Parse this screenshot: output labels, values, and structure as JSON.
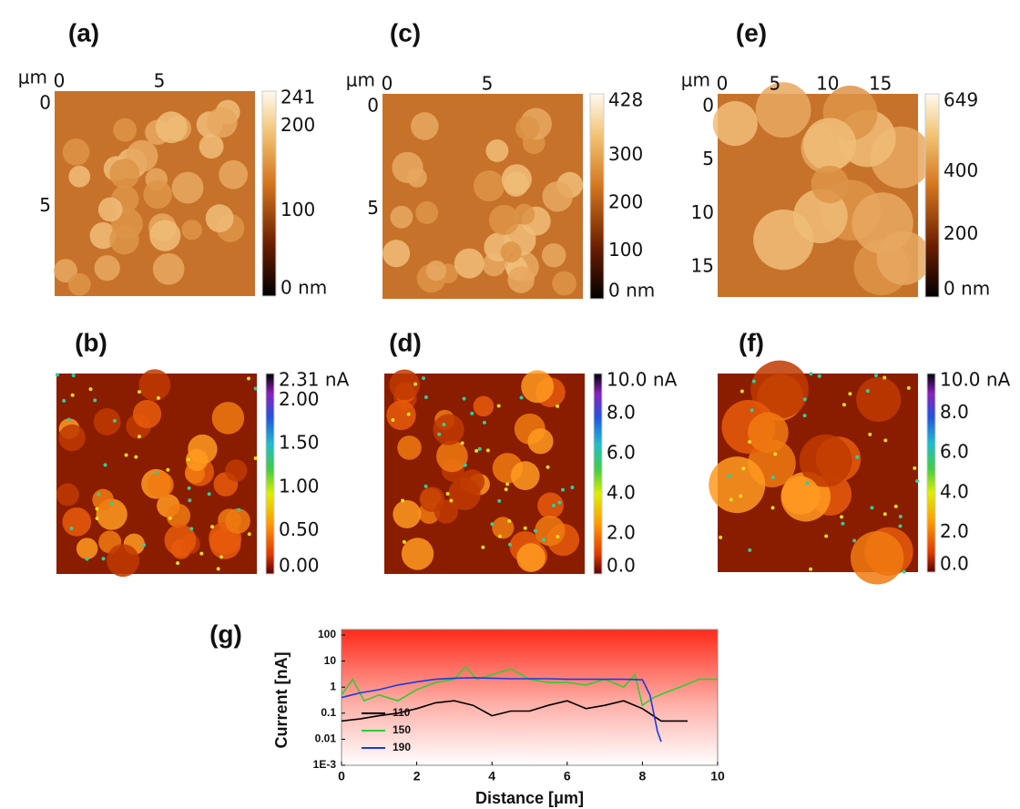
{
  "panels": [
    {
      "label": "(a)",
      "axis_unit": "μm",
      "xlim": [
        0,
        10
      ],
      "ylim": [
        0,
        10
      ],
      "xticks": [
        0,
        5
      ],
      "yticks": [
        0,
        5
      ],
      "kind": "height",
      "colorbar": {
        "lim": [
          0,
          241
        ],
        "ticks": [
          241,
          200,
          100,
          {
            "value": 0,
            "label": "0 nm"
          }
        ]
      }
    },
    {
      "label": "(b)",
      "kind": "current",
      "colorbar": {
        "lim": [
          0,
          2.31
        ],
        "ticks": [
          {
            "value": 2.31,
            "label": "2.31 nA"
          },
          {
            "value": 2,
            "label": "2.00"
          },
          {
            "value": 1.5,
            "label": "1.50"
          },
          {
            "value": 1,
            "label": "1.00"
          },
          {
            "value": 0.5,
            "label": "0.50"
          },
          {
            "value": 0,
            "label": "0.00"
          }
        ]
      }
    },
    {
      "label": "(c)",
      "axis_unit": "μm",
      "xlim": [
        0,
        10
      ],
      "ylim": [
        0,
        10
      ],
      "xticks": [
        0,
        5
      ],
      "yticks": [
        0,
        5
      ],
      "kind": "height",
      "colorbar": {
        "lim": [
          0,
          428
        ],
        "ticks": [
          428,
          300,
          200,
          100,
          {
            "value": 0,
            "label": "0 nm"
          }
        ]
      }
    },
    {
      "label": "(d)",
      "kind": "current",
      "colorbar": {
        "lim": [
          0,
          10
        ],
        "ticks": [
          {
            "value": 10,
            "label": "10.0 nA"
          },
          {
            "value": 8,
            "label": "8.0"
          },
          {
            "value": 6,
            "label": "6.0"
          },
          {
            "value": 4,
            "label": "4.0"
          },
          {
            "value": 2,
            "label": "2.0"
          },
          {
            "value": 0,
            "label": "0.0"
          }
        ]
      }
    },
    {
      "label": "(e)",
      "axis_unit": "μm",
      "xlim": [
        0,
        19
      ],
      "ylim": [
        0,
        19
      ],
      "xticks": [
        0,
        5,
        10,
        15
      ],
      "yticks": [
        0,
        5,
        10,
        15
      ],
      "kind": "height",
      "colorbar": {
        "lim": [
          0,
          649
        ],
        "ticks": [
          649,
          400,
          200,
          {
            "value": 0,
            "label": "0 nm"
          }
        ]
      }
    },
    {
      "label": "(f)",
      "kind": "current",
      "colorbar": {
        "lim": [
          0,
          10
        ],
        "ticks": [
          {
            "value": 10,
            "label": "10.0 nA"
          },
          {
            "value": 8,
            "label": "8.0"
          },
          {
            "value": 6,
            "label": "6.0"
          },
          {
            "value": 4,
            "label": "4.0"
          },
          {
            "value": 2,
            "label": "2.0"
          },
          {
            "value": 0,
            "label": "0.0"
          }
        ]
      }
    }
  ],
  "chart_data": {
    "type": "line",
    "label": "(g)",
    "xlabel": "Distance [μm]",
    "ylabel": "Current [nA]",
    "xlim": [
      0,
      10
    ],
    "xticks": [
      0,
      2,
      4,
      6,
      8,
      10
    ],
    "ylim": [
      0.001,
      100
    ],
    "ylog": true,
    "yticks": [
      100,
      10,
      1,
      0.1,
      0.01,
      {
        "value": 0.001,
        "label": "1E-3"
      }
    ],
    "legend": "lower left",
    "series": [
      {
        "name": "110",
        "color": "#000000",
        "x": [
          0,
          0.5,
          1,
          1.5,
          2,
          2.5,
          3,
          3.5,
          4,
          4.5,
          5,
          5.5,
          6,
          6.5,
          7,
          7.5,
          8,
          8.5,
          9,
          9.2
        ],
        "values": [
          0.05,
          0.06,
          0.08,
          0.1,
          0.15,
          0.25,
          0.3,
          0.2,
          0.08,
          0.12,
          0.12,
          0.2,
          0.3,
          0.15,
          0.2,
          0.3,
          0.15,
          0.05,
          0.05,
          0.05
        ]
      },
      {
        "name": "150",
        "color": "#33cc33",
        "x": [
          0,
          0.3,
          0.6,
          1,
          1.5,
          2,
          2.5,
          3,
          3.3,
          3.6,
          4,
          4.5,
          5,
          5.5,
          6,
          6.5,
          7,
          7.5,
          7.8,
          8,
          8.3,
          8.6,
          9,
          9.5,
          10
        ],
        "values": [
          0.5,
          2,
          0.3,
          0.5,
          0.3,
          0.8,
          1.5,
          2,
          6,
          2,
          3,
          5,
          2,
          1.5,
          1.5,
          1.2,
          2,
          1,
          3,
          0.2,
          0.4,
          0.6,
          1,
          2,
          2
        ]
      },
      {
        "name": "190",
        "color": "#1a3ae0",
        "x": [
          0,
          0.5,
          1,
          1.5,
          2,
          2.5,
          3,
          3.5,
          4,
          4.5,
          5,
          5.5,
          6,
          6.5,
          7,
          7.5,
          8,
          8.2,
          8.4,
          8.5
        ],
        "values": [
          0.4,
          0.6,
          0.8,
          1.2,
          1.6,
          2,
          2.2,
          2.3,
          2.2,
          2.1,
          2.1,
          2.1,
          2,
          2,
          2,
          2,
          1.9,
          0.5,
          0.02,
          0.008
        ]
      }
    ]
  }
}
